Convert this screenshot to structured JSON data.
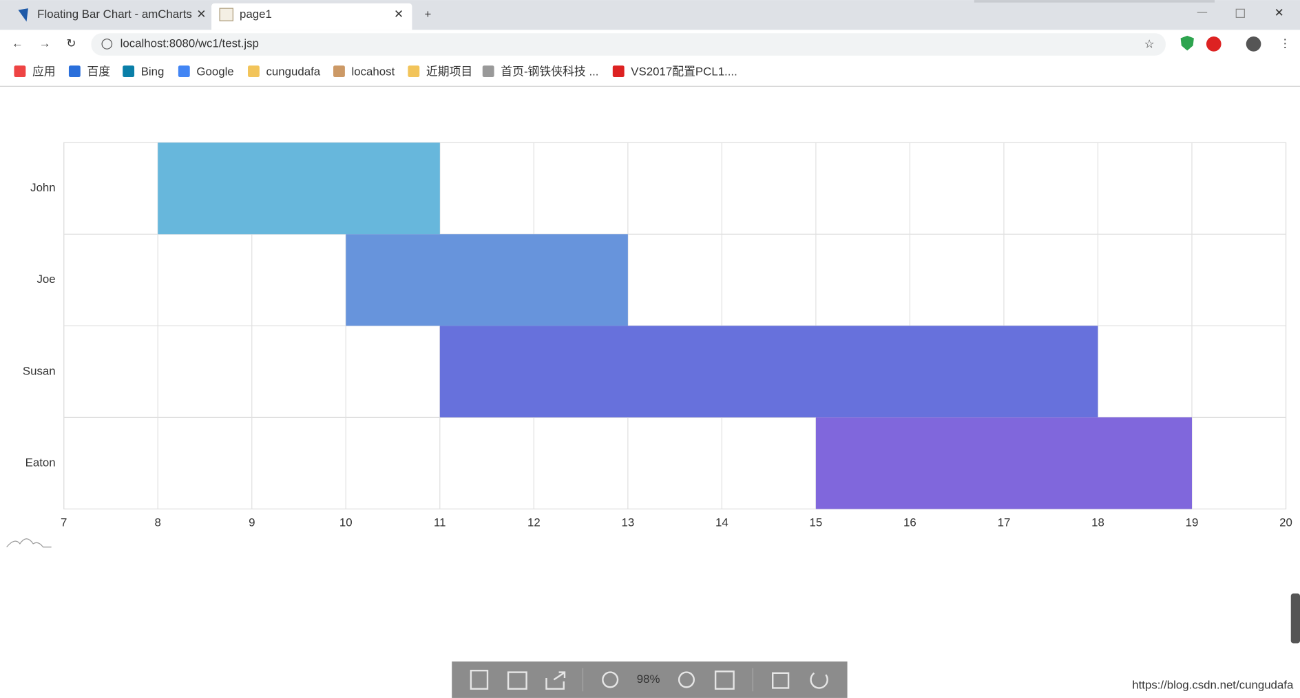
{
  "browser": {
    "tabs": [
      "Floating Bar Chart - amCharts",
      "page1"
    ],
    "url": "localhost:8080/wc1/test.jsp",
    "bookmarks": [
      "应用",
      "百度",
      "Bing",
      "Google",
      "cungudafa",
      "locahost",
      "近期项目",
      "首页-钢铁侠科技 ...",
      "VS2017配置PCL1...."
    ]
  },
  "chart_data": {
    "type": "floating-bar",
    "categories": [
      "John",
      "Joe",
      "Susan",
      "Eaton"
    ],
    "starts": [
      8,
      10,
      11,
      15
    ],
    "ends": [
      11,
      13,
      18,
      19
    ],
    "colors": [
      "#67b7dc",
      "#6794dc",
      "#6771dc",
      "#8067dc"
    ],
    "xlim": [
      7,
      20
    ],
    "xticks": [
      7,
      8,
      9,
      10,
      11,
      12,
      13,
      14,
      15,
      16,
      17,
      18,
      19,
      20
    ],
    "grid": true
  },
  "viewer": {
    "zoom": "98%",
    "watermark": "https://blog.csdn.net/cungudafa"
  }
}
